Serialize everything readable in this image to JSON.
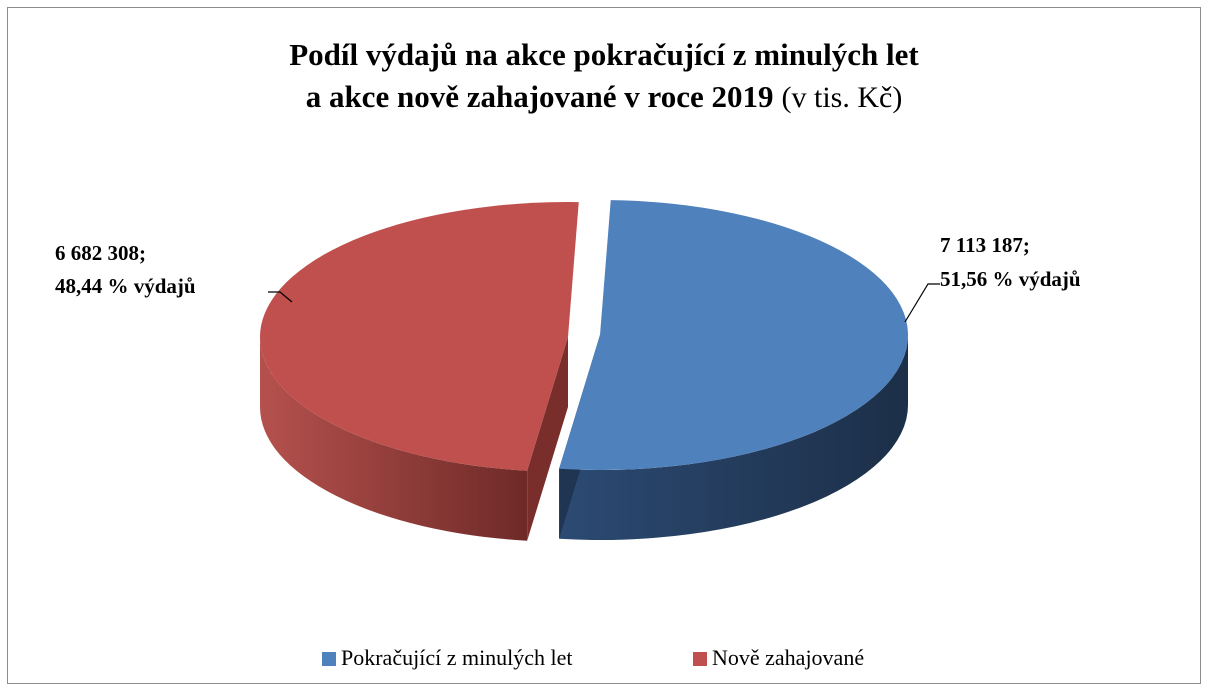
{
  "chart_data": {
    "type": "pie",
    "style": "3d-exploded",
    "title": {
      "lines": [
        "Podíl výdajů na akce pokračující z minulých let",
        "a akce nově zahajované v roce 2019"
      ],
      "unit": "(v tis. Kč)"
    },
    "categories": [
      "Pokračující z minulých let",
      "Nově zahajované"
    ],
    "values": [
      7113187,
      6682308
    ],
    "value_labels": [
      "7 113 187;",
      "6 682 308;"
    ],
    "percents": [
      51.56,
      48.44
    ],
    "percent_labels": [
      "51,56 % výdajů",
      "48,44 % výdajů"
    ],
    "colors": [
      "#4f81bd",
      "#c0504d"
    ],
    "side_colors": [
      "#1f3552",
      "#7a2e2b"
    ],
    "legend": "bottom"
  }
}
